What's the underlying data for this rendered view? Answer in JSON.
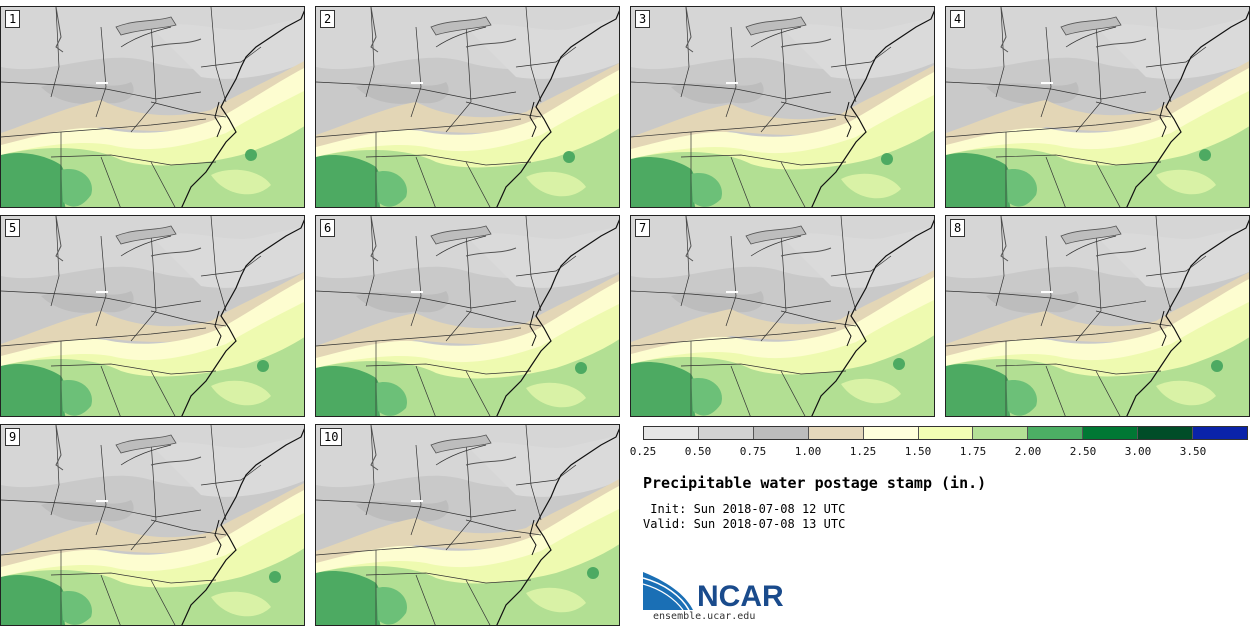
{
  "panels": [
    {
      "label": "1"
    },
    {
      "label": "2"
    },
    {
      "label": "3"
    },
    {
      "label": "4"
    },
    {
      "label": "5"
    },
    {
      "label": "6"
    },
    {
      "label": "7"
    },
    {
      "label": "8"
    },
    {
      "label": "9"
    },
    {
      "label": "10"
    }
  ],
  "colorbar": {
    "colors": [
      "#e6e6e6",
      "#d2d2d2",
      "#bcbcbc",
      "#e4d7bb",
      "#ffffdc",
      "#f3ffb4",
      "#b4e196",
      "#4caf64",
      "#007834",
      "#004d28",
      "#0a23aa"
    ],
    "ticks": [
      "0.25",
      "0.50",
      "0.75",
      "1.00",
      "1.25",
      "1.50",
      "1.75",
      "2.00",
      "2.50",
      "3.00",
      "3.50"
    ]
  },
  "title": "Precipitable water postage stamp (in.)",
  "init_line": " Init: Sun 2018-07-08 12 UTC",
  "valid_line": "Valid: Sun 2018-07-08 13 UTC",
  "logo": {
    "text": "NCAR",
    "url": "ensemble.ucar.edu"
  }
}
